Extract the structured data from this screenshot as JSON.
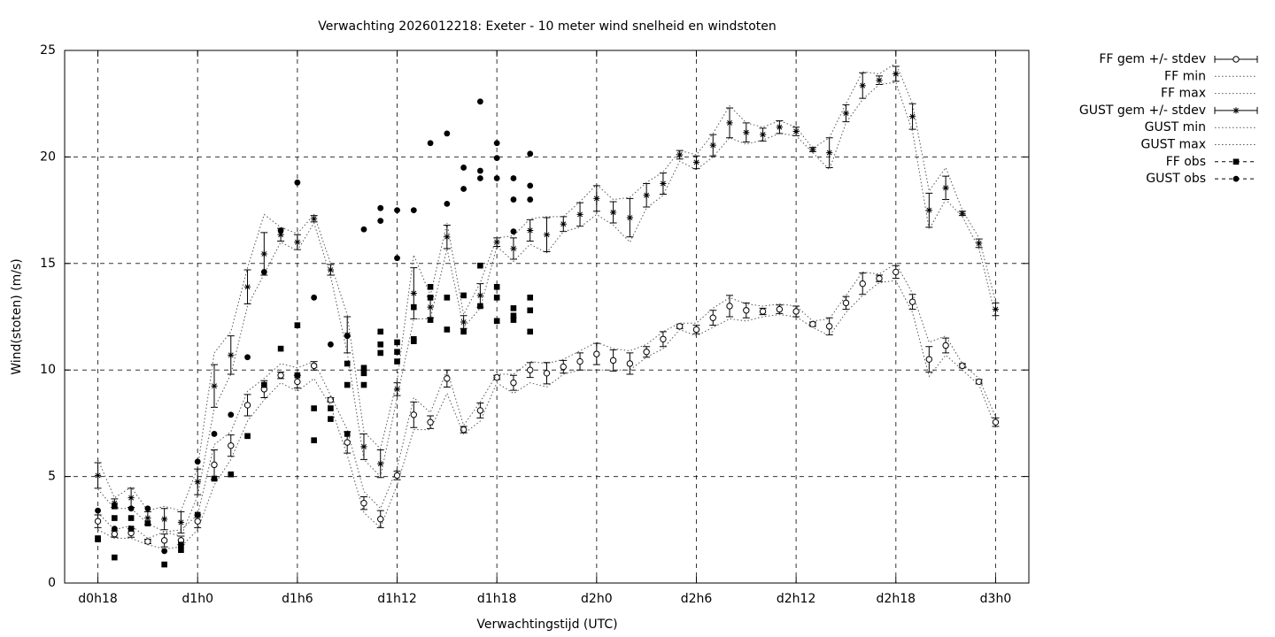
{
  "chart_data": {
    "type": "errorbar",
    "title": "Verwachting 2026012218: Exeter - 10 meter wind snelheid en windstoten",
    "xlabel": "Verwachtingstijd (UTC)",
    "ylabel": "Wind(stoten) (m/s)",
    "xlim": [
      16,
      74
    ],
    "ylim": [
      0,
      25
    ],
    "xticks": [
      {
        "value": 18,
        "label": "d0h18"
      },
      {
        "value": 24,
        "label": "d1h0"
      },
      {
        "value": 30,
        "label": "d1h6"
      },
      {
        "value": 36,
        "label": "d1h12"
      },
      {
        "value": 42,
        "label": "d1h18"
      },
      {
        "value": 48,
        "label": "d2h0"
      },
      {
        "value": 54,
        "label": "d2h6"
      },
      {
        "value": 60,
        "label": "d2h12"
      },
      {
        "value": 66,
        "label": "d2h18"
      },
      {
        "value": 72,
        "label": "d3h0"
      }
    ],
    "yticks": [
      0,
      5,
      10,
      15,
      20,
      25
    ],
    "grid": true,
    "legend": "outside-top-right",
    "x": [
      18,
      19,
      20,
      21,
      22,
      23,
      24,
      25,
      26,
      27,
      28,
      29,
      30,
      31,
      32,
      33,
      34,
      35,
      36,
      37,
      38,
      39,
      40,
      41,
      42,
      43,
      44,
      45,
      46,
      47,
      48,
      49,
      50,
      51,
      52,
      53,
      54,
      55,
      56,
      57,
      58,
      59,
      60,
      61,
      62,
      63,
      64,
      65,
      66,
      67,
      68,
      69,
      70,
      71,
      72
    ],
    "series": [
      {
        "name": "FF gem +/- stdev",
        "color": "#000000",
        "style": "errorbars",
        "point": "circle-open",
        "values": [
          2.9,
          2.3,
          2.35,
          1.95,
          2.0,
          2.0,
          2.9,
          5.55,
          6.45,
          8.35,
          9.1,
          9.75,
          9.45,
          10.2,
          8.6,
          6.6,
          3.75,
          3.0,
          5.05,
          7.9,
          7.55,
          9.6,
          7.2,
          8.1,
          9.65,
          9.4,
          10.0,
          9.85,
          10.15,
          10.4,
          10.75,
          10.45,
          10.3,
          10.85,
          11.45,
          12.05,
          11.9,
          12.45,
          13.0,
          12.8,
          12.75,
          12.85,
          12.75,
          12.15,
          12.05,
          13.15,
          14.05,
          14.3,
          14.6,
          13.2,
          10.5,
          11.15,
          10.2,
          9.45,
          7.55
        ],
        "errors": [
          0.3,
          0.15,
          0.2,
          0.1,
          0.3,
          0.2,
          0.3,
          0.7,
          0.5,
          0.5,
          0.4,
          0.15,
          0.3,
          0.2,
          0.1,
          0.5,
          0.3,
          0.4,
          0.2,
          0.6,
          0.3,
          0.4,
          0.15,
          0.35,
          0.1,
          0.35,
          0.35,
          0.5,
          0.3,
          0.4,
          0.5,
          0.5,
          0.5,
          0.25,
          0.35,
          0.1,
          0.2,
          0.35,
          0.5,
          0.35,
          0.15,
          0.2,
          0.25,
          0.1,
          0.4,
          0.3,
          0.5,
          0.15,
          0.3,
          0.35,
          0.6,
          0.35,
          0.1,
          0.1,
          0.2
        ]
      },
      {
        "name": "FF min",
        "color": "#555555",
        "style": "line",
        "values": [
          2.5,
          2.1,
          2.1,
          1.8,
          1.6,
          1.7,
          2.5,
          4.6,
          5.8,
          7.6,
          8.6,
          9.4,
          9.0,
          9.6,
          8.3,
          6.0,
          3.3,
          2.6,
          4.6,
          7.2,
          7.2,
          8.9,
          7.0,
          7.6,
          9.4,
          8.9,
          9.4,
          9.2,
          9.8,
          10.0,
          10.0,
          10.0,
          10.0,
          10.6,
          11.0,
          11.9,
          11.6,
          12.0,
          12.4,
          12.3,
          12.5,
          12.6,
          12.5,
          12.0,
          11.6,
          12.7,
          13.5,
          14.1,
          14.2,
          12.7,
          9.7,
          10.7,
          10.0,
          9.3,
          7.3
        ]
      },
      {
        "name": "FF max",
        "color": "#555555",
        "style": "line",
        "values": [
          3.3,
          2.5,
          2.7,
          2.1,
          2.4,
          2.5,
          3.2,
          6.5,
          7.1,
          9.0,
          9.6,
          10.3,
          10.1,
          10.4,
          8.8,
          7.2,
          4.3,
          3.5,
          5.4,
          8.7,
          8.0,
          10.0,
          7.4,
          8.5,
          9.8,
          9.8,
          10.4,
          10.3,
          10.5,
          10.9,
          11.3,
          11.0,
          10.9,
          11.2,
          11.8,
          12.2,
          12.2,
          12.9,
          13.4,
          13.1,
          13.0,
          13.1,
          13.0,
          12.3,
          12.4,
          13.5,
          14.6,
          14.5,
          15.0,
          13.6,
          11.3,
          11.6,
          10.3,
          9.6,
          7.8
        ]
      },
      {
        "name": "GUST gem +/- stdev",
        "color": "#000000",
        "style": "errorbars",
        "point": "star",
        "values": [
          5.05,
          3.75,
          4.0,
          3.05,
          3.0,
          2.85,
          4.75,
          9.25,
          10.7,
          13.9,
          15.45,
          16.35,
          16.0,
          17.1,
          14.7,
          11.65,
          6.4,
          5.6,
          9.1,
          13.6,
          12.95,
          16.25,
          12.25,
          13.5,
          16.0,
          15.7,
          16.55,
          16.35,
          16.85,
          17.3,
          18.05,
          17.4,
          17.15,
          18.2,
          18.75,
          20.1,
          19.75,
          20.55,
          21.6,
          21.15,
          21.05,
          21.4,
          21.2,
          20.35,
          20.2,
          22.05,
          23.35,
          23.6,
          23.9,
          21.9,
          17.5,
          18.55,
          17.35,
          15.95,
          12.85
        ],
        "errors": [
          0.6,
          0.2,
          0.45,
          0.3,
          0.5,
          0.5,
          0.6,
          1.0,
          0.9,
          0.8,
          1.0,
          0.3,
          0.35,
          0.15,
          0.25,
          0.85,
          0.6,
          0.65,
          0.3,
          1.2,
          0.5,
          0.55,
          0.3,
          0.55,
          0.2,
          0.5,
          0.5,
          0.8,
          0.35,
          0.55,
          0.6,
          0.5,
          0.9,
          0.55,
          0.5,
          0.2,
          0.3,
          0.5,
          0.7,
          0.45,
          0.3,
          0.3,
          0.2,
          0.1,
          0.7,
          0.4,
          0.6,
          0.2,
          0.35,
          0.6,
          0.8,
          0.55,
          0.1,
          0.2,
          0.3
        ]
      },
      {
        "name": "GUST min",
        "color": "#555555",
        "style": "line",
        "values": [
          4.4,
          3.5,
          3.5,
          2.8,
          2.4,
          2.2,
          4.1,
          8.2,
          9.8,
          13.0,
          14.5,
          16.0,
          15.6,
          16.9,
          14.4,
          10.8,
          5.8,
          5.0,
          8.7,
          12.4,
          12.4,
          15.7,
          12.0,
          12.9,
          15.8,
          15.1,
          15.9,
          15.5,
          16.5,
          16.7,
          17.3,
          16.8,
          16.0,
          17.6,
          18.2,
          19.8,
          19.4,
          20.0,
          20.9,
          20.6,
          20.8,
          21.1,
          21.0,
          20.2,
          19.4,
          21.6,
          22.7,
          23.4,
          23.5,
          21.2,
          16.6,
          18.0,
          17.2,
          15.7,
          12.5
        ]
      },
      {
        "name": "GUST max",
        "color": "#555555",
        "style": "line",
        "values": [
          5.8,
          4.0,
          4.5,
          3.4,
          3.6,
          3.4,
          5.4,
          10.8,
          11.8,
          14.8,
          17.3,
          16.7,
          16.4,
          17.3,
          15.0,
          12.6,
          7.1,
          6.3,
          9.5,
          15.4,
          13.5,
          16.9,
          12.6,
          14.1,
          16.2,
          16.3,
          17.1,
          17.2,
          17.2,
          17.9,
          18.7,
          18.0,
          18.1,
          18.8,
          19.3,
          20.3,
          20.1,
          21.1,
          22.4,
          21.6,
          21.4,
          21.7,
          21.4,
          20.4,
          20.9,
          22.5,
          24.0,
          23.9,
          24.4,
          22.5,
          18.4,
          19.5,
          17.5,
          16.2,
          13.2
        ]
      },
      {
        "name": "FF obs",
        "color": "#000000",
        "style": "points",
        "point": "square",
        "x": [
          18,
          18,
          19,
          19,
          19,
          20,
          20,
          21,
          22,
          23,
          23,
          24,
          25,
          26,
          27,
          28,
          29,
          30,
          30,
          31,
          31,
          32,
          32,
          33,
          33,
          33,
          34,
          34,
          34,
          35,
          35,
          35,
          36,
          36,
          36,
          37,
          37,
          37,
          38,
          38,
          38,
          39,
          39,
          40,
          40,
          41,
          41,
          42,
          42,
          42,
          43,
          43,
          43,
          44,
          44,
          44
        ],
        "values": [
          2.05,
          2.1,
          3.05,
          3.6,
          1.2,
          3.05,
          2.55,
          2.8,
          0.87,
          1.55,
          1.8,
          3.2,
          4.9,
          5.1,
          6.9,
          9.3,
          11.0,
          12.1,
          9.75,
          8.2,
          6.7,
          8.2,
          7.7,
          10.3,
          9.3,
          7.0,
          10.1,
          9.85,
          9.3,
          11.8,
          11.2,
          10.8,
          11.3,
          10.85,
          10.4,
          12.95,
          11.45,
          11.35,
          13.9,
          13.4,
          12.35,
          13.4,
          11.9,
          13.5,
          11.8,
          14.9,
          13.0,
          13.9,
          13.4,
          12.3,
          12.9,
          12.55,
          12.35,
          13.4,
          12.8,
          11.8
        ]
      },
      {
        "name": "GUST obs",
        "color": "#000000",
        "style": "points",
        "point": "circle-filled",
        "x": [
          18,
          19,
          20,
          21,
          22,
          24,
          25,
          26,
          27,
          28,
          29,
          30,
          31,
          32,
          33,
          34,
          35,
          35,
          36,
          36,
          37,
          38,
          39,
          39,
          40,
          40,
          41,
          41,
          41,
          42,
          42,
          42,
          43,
          43,
          43,
          44,
          44,
          44
        ],
        "values": [
          3.4,
          2.55,
          3.5,
          3.5,
          1.5,
          5.7,
          7.0,
          7.9,
          10.6,
          14.6,
          16.55,
          18.8,
          13.4,
          11.2,
          11.6,
          16.6,
          17.6,
          17.0,
          17.5,
          15.25,
          17.5,
          20.65,
          21.1,
          17.8,
          19.5,
          18.5,
          22.6,
          19.35,
          19.0,
          20.65,
          19.95,
          19.0,
          19.0,
          18.0,
          16.5,
          20.15,
          18.65,
          18.0
        ]
      }
    ]
  }
}
